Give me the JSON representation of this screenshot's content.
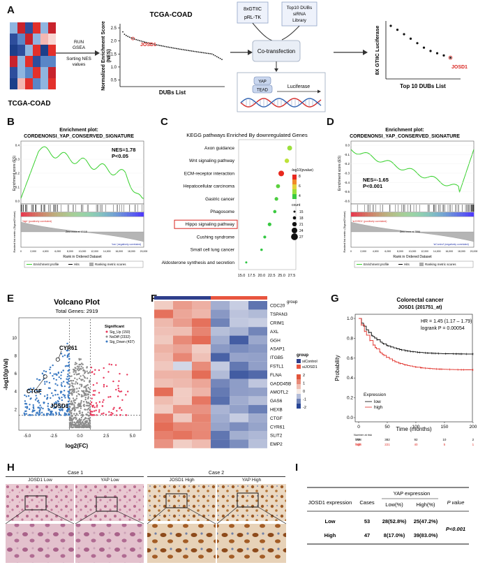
{
  "panels": {
    "A": "A",
    "B": "B",
    "C": "C",
    "D": "D",
    "E": "E",
    "F": "F",
    "G": "G",
    "H": "H",
    "I": "I"
  },
  "panelA": {
    "heatmap_label": "TCGA-COAD",
    "arrow1_text": [
      "RUN",
      "GSEA",
      "Sorting NES",
      "values"
    ],
    "tcga_title": "TCGA-COAD",
    "nes_ylabel": "Normalized Enrichment Score",
    "nes_ylabel2": "(NES)",
    "nes_xlabel": "DUBs List",
    "nes_highlight": "JOSD1",
    "nes_yticks": [
      "2.5",
      "2.0",
      "1.5",
      "1.0",
      "0.5"
    ],
    "box1": [
      "8xGTIIC",
      "pRL-TK"
    ],
    "box2": [
      "Top10 DUBs",
      "siRNA",
      "Library"
    ],
    "cotransfection": "Co-transfection",
    "yap": "YAP",
    "tead": "TEAD",
    "luciferase": "Luciferase",
    "luc_ylabel": "8X GTIIC Luciferase",
    "luc_xlabel": "Top 10 DUBs List",
    "luc_highlight": "JOSD1",
    "luc_values": [
      0.95,
      0.88,
      0.8,
      0.72,
      0.64,
      0.56,
      0.5,
      0.46,
      0.42,
      0.38
    ]
  },
  "panelB": {
    "title1": "Enrichment plot:",
    "title2": "CORDENONSI_YAP_CONSERVED_SIGNATURE",
    "nes": "NES=1.78",
    "p": "P<0.05",
    "es_ylabel": "Enrichment score (ES)",
    "rank_ylabel": "Ranked list metric (Signal2Noise)",
    "pos_label": "'high' (positively correlated)",
    "neg_label": "'low' (negatively correlated)",
    "zero_cross": "Zero cross at 10118",
    "xlabel": "Rank in Ordered Dataset",
    "legend": [
      "Enrichment profile",
      "Hits",
      "Ranking metric scores"
    ],
    "yticks": [
      "0.4",
      "0.3",
      "0.2",
      "0.1",
      "0.0"
    ],
    "xticks": [
      "0",
      "2,000",
      "4,000",
      "6,000",
      "8,000",
      "10,000",
      "12,000",
      "14,000",
      "16,000",
      "18,000",
      "20,000"
    ]
  },
  "panelC": {
    "title": "KEGG pathways Enriched By downregulated Genes",
    "pathways": [
      "Axon guidance",
      "Wnt signaling pathway",
      "ECM-receptor interaction",
      "Hepatocellular carcinoma",
      "Gastric cancer",
      "Phagosome",
      "Hippo signaling pathway",
      "Cushing syndrome",
      "Small cell lung cancer",
      "Aldosterone synthesis and secretion"
    ],
    "xvals": [
      27.0,
      26.3,
      24.9,
      24.1,
      23.7,
      23.3,
      22.0,
      20.8,
      20.0,
      16.2
    ],
    "counts": [
      22,
      21,
      24,
      20,
      19,
      18,
      19,
      17,
      16,
      15
    ],
    "neglog_p": [
      3.8,
      4.5,
      7.8,
      4.3,
      4.0,
      3.9,
      4.2,
      3.5,
      3.4,
      3.2
    ],
    "point_colors": [
      "#9be03c",
      "#bde23a",
      "#e8281e",
      "#5bd13e",
      "#4ccd40",
      "#3bca41",
      "#37c941",
      "#33c742",
      "#30c642",
      "#2cc542"
    ],
    "xticks": [
      "15.0",
      "17.5",
      "20.0",
      "22.5",
      "25.0",
      "27.5"
    ],
    "legend_title": "-log10(pvalue)",
    "legend_ticks": [
      "8",
      "6",
      "4"
    ],
    "count_title": "count",
    "count_values": [
      "15",
      "18",
      "21",
      "24",
      "27"
    ],
    "highlight": "Hippo signaling pathway"
  },
  "panelD": {
    "title1": "Enrichment plot:",
    "title2": "CORDENONSI_YAP_CONSERVED_SIGNATURE",
    "nes": "NES=-1.65",
    "p": "P<0.001",
    "es_ylabel": "Enrichment score (ES)",
    "rank_ylabel": "Ranked list metric (Signal2Noise)",
    "pos_label": "'siJOSD1' (positively correlated)",
    "neg_label": "'siControl' (negatively correlated)",
    "zero_cross": "Zero cross at 7896",
    "xlabel": "Rank in Ordered Dataset",
    "legend": [
      "Enrichment profile",
      "Hits",
      "Ranking metric scores"
    ],
    "yticks": [
      "0.0",
      "-0.1",
      "-0.2",
      "-0.3",
      "-0.4",
      "-0.5",
      "-0.6"
    ],
    "xticks": [
      "0",
      "2,000",
      "4,000",
      "6,000",
      "8,000",
      "10,000",
      "12,000",
      "14,000",
      "16,000",
      "18,000",
      "20,000"
    ]
  },
  "panelE": {
    "title": "Volcano Plot",
    "subtitle": "Total Genes: 2919",
    "ylabel": "-log10(pVal)",
    "xlabel": "log2(FC)",
    "legend_title": "Significant",
    "legend": [
      "Sig_Up (150)",
      "NoDiff (2332)",
      "Sig_Down (437)"
    ],
    "colors": [
      "#e8365a",
      "#8c8c8c",
      "#3a79c2"
    ],
    "labels": [
      "CYR61",
      "CTGF",
      "JOSD1"
    ],
    "xticks": [
      "-5.0",
      "-2.5",
      "0.0",
      "2.5",
      "5.0"
    ],
    "yticks": [
      "10",
      "8",
      "6",
      "4",
      "2"
    ]
  },
  "panelF": {
    "group_label": "group",
    "genes": [
      "CDC20",
      "TSPAN3",
      "CRIM1",
      "AXL",
      "GGH",
      "ASAP1",
      "ITGB5",
      "FSTL1",
      "FLNA",
      "GADD45B",
      "AMOTL2",
      "GAS6",
      "HEXB",
      "CTGF",
      "CYR61",
      "SLIT2",
      "EMP2"
    ],
    "legend_group": "group",
    "legend_items": [
      "siControl",
      "siJOSD1"
    ],
    "scale": [
      "2",
      "1",
      "0",
      "-1",
      "-2"
    ]
  },
  "panelG": {
    "title": "Colorectal cancer",
    "subtitle": "JOSD1 (201751_at)",
    "hr": "HR = 1.45 (1.17 – 1.79)",
    "logrank": "logrank P = 0.00054",
    "ylabel": "Probability",
    "xlabel": "Time (months)",
    "legend_title": "Expression",
    "legend": [
      "low",
      "high"
    ],
    "yticks": [
      "1.0",
      "0.8",
      "0.6",
      "0.4",
      "0.2",
      "0.0"
    ],
    "xticks": [
      "0",
      "50",
      "100",
      "150",
      "200"
    ],
    "risk_title": "Number at risk",
    "risk_low": [
      "low",
      "778",
      "382",
      "92",
      "10",
      "2"
    ],
    "risk_high": [
      "high",
      "558",
      "221",
      "40",
      "5",
      "1"
    ]
  },
  "panelH": {
    "case1": "Case 1",
    "case2": "Case 2",
    "labels": [
      "JOSD1 Low",
      "YAP Low",
      "JOSD1 High",
      "YAP High"
    ]
  },
  "panelI": {
    "header_col1": "JOSD1 expression",
    "header_col2": "Cases",
    "header_yap": "YAP expression",
    "header_low": "Low(%)",
    "header_high": "High(%)",
    "header_p": "P value",
    "rows": [
      {
        "expr": "Low",
        "cases": "53",
        "low": "28(52.8%)",
        "high": "25(47.2%)"
      },
      {
        "expr": "High",
        "cases": "47",
        "low": "8(17.0%)",
        "high": "39(83.0%)"
      }
    ],
    "p": "P<0.001"
  }
}
